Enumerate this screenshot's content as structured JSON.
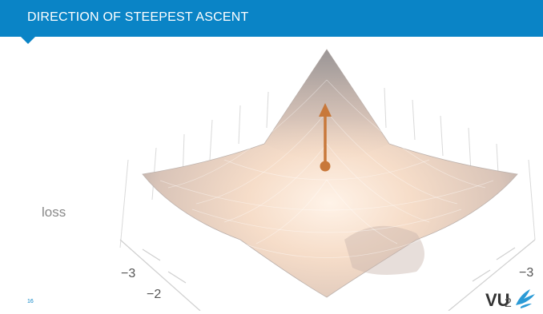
{
  "slide": {
    "title": "DIRECTION OF STEEPEST ASCENT",
    "page_number": "16",
    "accent_color": "#0a84c6"
  },
  "plot": {
    "axis_title": "loss",
    "left_ticks": [
      "−3",
      "−2"
    ],
    "right_ticks": [
      "−3",
      "2"
    ],
    "arrow_color": "#c8783a",
    "surface_color": "#f3d9c8"
  },
  "logo": {
    "text": "VU",
    "icon": "vu-griffin-icon"
  }
}
